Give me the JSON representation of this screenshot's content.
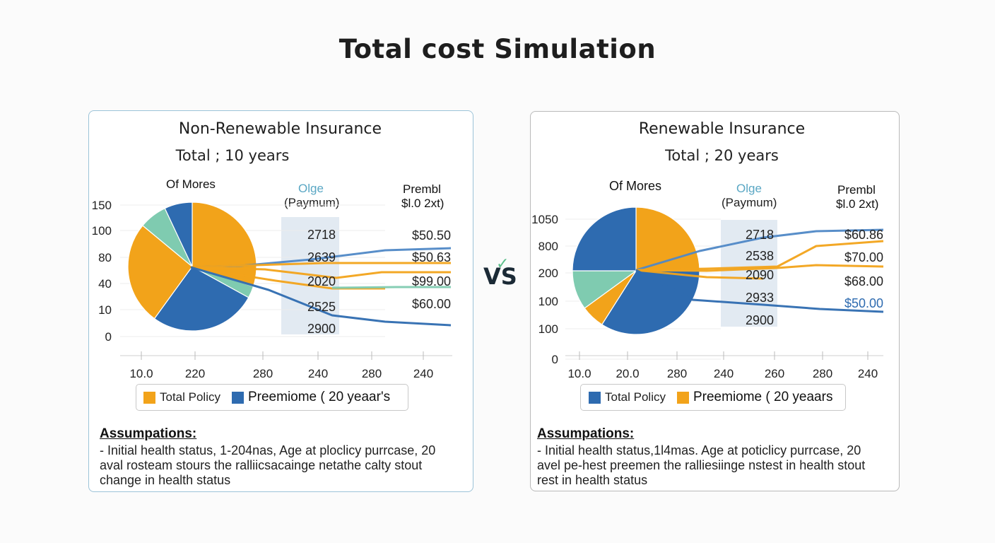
{
  "page": {
    "title": "Total cost Simulation",
    "vs_label": "VS",
    "vs_mark": "✓"
  },
  "colors": {
    "orange": "#f2a31a",
    "blue": "#2e6bb0",
    "teal": "#7fcbb0",
    "steel": "#4f88c6",
    "lightblue": "#dde6f0"
  },
  "chart_data": [
    {
      "type": "pie+line",
      "title": "Non-Renewable Insurance",
      "subtitle": "Total ; 10 years",
      "header_left": "Of Mores",
      "header_mid": [
        "Olge",
        "(Paymum)"
      ],
      "header_right": [
        "Prembl",
        "$l.0 2xt)"
      ],
      "y_ticks": [
        "150",
        "100",
        "80",
        "40",
        "10",
        "0"
      ],
      "x_ticks": [
        "10.0",
        "220",
        "280",
        "240",
        "280",
        "240"
      ],
      "pie": [
        {
          "name": "orange-top",
          "value": 30,
          "color": "#f2a31a"
        },
        {
          "name": "teal-right",
          "value": 3,
          "color": "#7fcbb0"
        },
        {
          "name": "blue-bottom",
          "value": 27,
          "color": "#2e6bb0"
        },
        {
          "name": "orange-left",
          "value": 26,
          "color": "#f2a31a"
        },
        {
          "name": "teal-top",
          "value": 7,
          "color": "#7fcbb0"
        },
        {
          "name": "blue-top",
          "value": 7,
          "color": "#2e6bb0"
        }
      ],
      "mid_values": [
        "2718",
        "2639",
        "2020",
        "2525",
        "2900"
      ],
      "right_values": [
        "$50.50",
        "$50.63",
        "$99.00",
        "$60.00"
      ],
      "series": [
        {
          "name": "steel",
          "color": "#4f88c6",
          "points": [
            [
              270,
              378
            ],
            [
              340,
              376
            ],
            [
              440,
              367
            ],
            [
              545,
              354
            ],
            [
              638,
              351
            ]
          ]
        },
        {
          "name": "orange-a",
          "color": "#f2a31a",
          "points": [
            [
              270,
              378
            ],
            [
              330,
              376
            ],
            [
              460,
              372
            ],
            [
              543,
              372
            ],
            [
              638,
              372
            ]
          ]
        },
        {
          "name": "orange-b",
          "color": "#f2a31a",
          "points": [
            [
              270,
              378
            ],
            [
              375,
              381
            ],
            [
              476,
              393
            ],
            [
              540,
              385
            ],
            [
              638,
              385
            ]
          ]
        },
        {
          "name": "orange-c",
          "color": "#f2a31a",
          "points": [
            [
              270,
              378
            ],
            [
              390,
              397
            ],
            [
              470,
              408
            ],
            [
              545,
              408
            ]
          ]
        },
        {
          "name": "teal",
          "color": "#7fcbb0",
          "points": [
            [
              470,
              407
            ],
            [
              560,
              406
            ],
            [
              638,
              406
            ]
          ]
        },
        {
          "name": "navy",
          "color": "#2e6bb0",
          "points": [
            [
              270,
              378
            ],
            [
              380,
              410
            ],
            [
              470,
              446
            ],
            [
              545,
              455
            ],
            [
              638,
              460
            ]
          ]
        }
      ],
      "legend": [
        {
          "label": "Total Policy",
          "color": "#f2a31a"
        },
        {
          "label": "Preemiome ( 20 yeaar's",
          "color": "#2e6bb0"
        }
      ],
      "assumptions_title": "Assumpations:",
      "assumptions": [
        "- Initial health status, 1-204nas, Age at ploclicy purrcase, 20",
        " aval rosteam stours the ralliicsacainge netathe calty stout",
        " change in health status"
      ]
    },
    {
      "type": "pie+line",
      "title": "Renewable Insurance",
      "subtitle": "Total ; 20 years",
      "header_left": "Of Mores",
      "header_mid": [
        "Olge",
        "(Paymum)"
      ],
      "header_right": [
        "Prembl",
        "$l.0 2xt)"
      ],
      "y_ticks": [
        "1050",
        "800",
        "200",
        "100",
        "100",
        "0"
      ],
      "x_ticks": [
        "10.0",
        "20.0",
        "280",
        "240",
        "260",
        "280",
        "240"
      ],
      "pie": [
        {
          "name": "orange-top",
          "value": 25,
          "color": "#f2a31a"
        },
        {
          "name": "blue-bottom",
          "value": 34,
          "color": "#2e6bb0"
        },
        {
          "name": "orange-small",
          "value": 6,
          "color": "#f2a31a"
        },
        {
          "name": "teal-left",
          "value": 10,
          "color": "#7fcbb0"
        },
        {
          "name": "blue-left",
          "value": 25,
          "color": "#2e6bb0"
        }
      ],
      "mid_values": [
        "2718",
        "2538",
        "2090",
        "2933",
        "2900"
      ],
      "right_values": [
        "$60.86",
        "$70.00",
        "$68.00",
        "$50.00"
      ],
      "series": [
        {
          "name": "steel",
          "color": "#4f88c6",
          "points": [
            [
              900,
              382
            ],
            [
              990,
              355
            ],
            [
              1080,
              336
            ],
            [
              1155,
              327
            ],
            [
              1250,
              325
            ]
          ]
        },
        {
          "name": "orange-a",
          "color": "#f2a31a",
          "points": [
            [
              900,
              382
            ],
            [
              1000,
              380
            ],
            [
              1100,
              377
            ],
            [
              1155,
              348
            ],
            [
              1250,
              341
            ]
          ]
        },
        {
          "name": "orange-b",
          "color": "#f2a31a",
          "points": [
            [
              900,
              382
            ],
            [
              1000,
              383
            ],
            [
              1100,
              379
            ],
            [
              1155,
              375
            ],
            [
              1250,
              377
            ]
          ]
        },
        {
          "name": "orange-c",
          "color": "#f2a31a",
          "points": [
            [
              900,
              382
            ],
            [
              1000,
              392
            ],
            [
              1080,
              394
            ]
          ]
        },
        {
          "name": "navy",
          "color": "#2e6bb0",
          "points": [
            [
              900,
              382
            ],
            [
              980,
              424
            ],
            [
              1080,
              431
            ],
            [
              1160,
              437
            ],
            [
              1250,
              441
            ]
          ]
        }
      ],
      "legend": [
        {
          "label": "Total Policy",
          "color": "#2e6bb0"
        },
        {
          "label": "Preemiome ( 20 yeaars",
          "color": "#f2a31a"
        }
      ],
      "assumptions_title": "Assumpations:",
      "assumptions": [
        "- Initial health status,1l4mas. Age at poticlicy purrcase, 20",
        " avel pe-hest preemen the ralliesiinge nstest in health  stout",
        " rest in health status"
      ]
    }
  ]
}
